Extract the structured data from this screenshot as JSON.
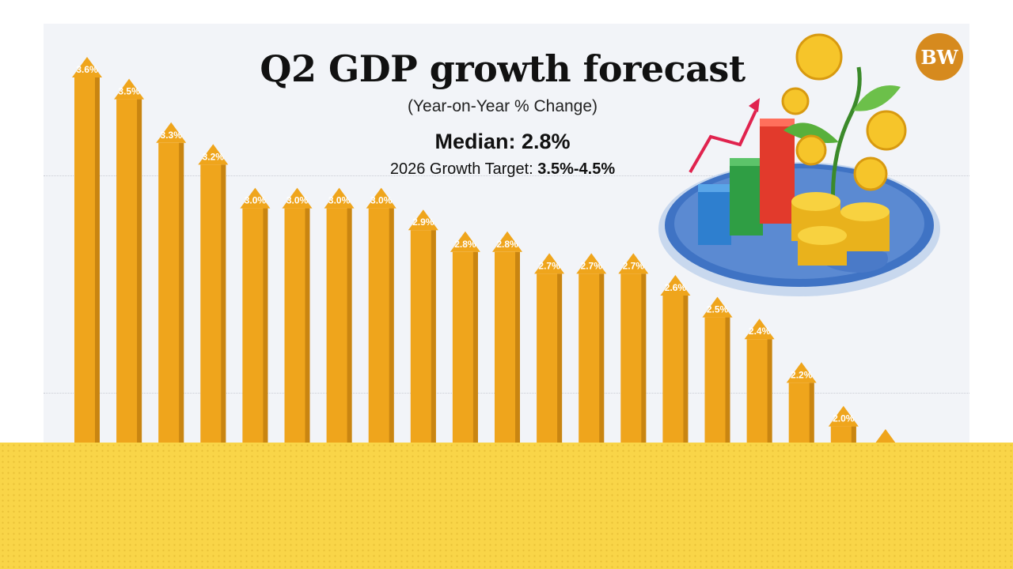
{
  "header": {
    "title": "Q2 GDP growth forecast",
    "subtitle": "(Year-on-Year % Change)",
    "median_label": "Median:",
    "median_value": "2.8%",
    "target_label": "2026 Growth Target:",
    "target_value": "3.5%-4.5%"
  },
  "logo": {
    "text": "BW"
  },
  "colors": {
    "arrow_main": "#efa51c",
    "arrow_shade": "#c98511",
    "label_text": "#ffffff",
    "band": "#f9d548",
    "background": "#f2f4f8"
  },
  "chart_data": {
    "type": "bar",
    "style": "upward arrows",
    "values": [
      3.6,
      3.5,
      3.3,
      3.2,
      3.0,
      3.0,
      3.0,
      3.0,
      2.9,
      2.8,
      2.8,
      2.7,
      2.7,
      2.7,
      2.6,
      2.5,
      2.4,
      2.2,
      2.0,
      null
    ],
    "labels": [
      "3.6%",
      "3.5%",
      "3.3%",
      "3.2%",
      "3.0%",
      "3.0%",
      "3.0%",
      "3.0%",
      "2.9%",
      "2.8%",
      "2.8%",
      "2.7%",
      "2.7%",
      "2.7%",
      "2.6%",
      "2.5%",
      "2.4%",
      "2.2%",
      "2.0%",
      ""
    ],
    "title": "Q2 GDP growth forecast",
    "xlabel": "",
    "ylabel": "",
    "grid": true
  },
  "illustration": {
    "icons": [
      "trend-arrow-icon",
      "bar-chart-icon",
      "coin-stack-icon",
      "money-plant-icon",
      "globe-plate-icon"
    ]
  }
}
